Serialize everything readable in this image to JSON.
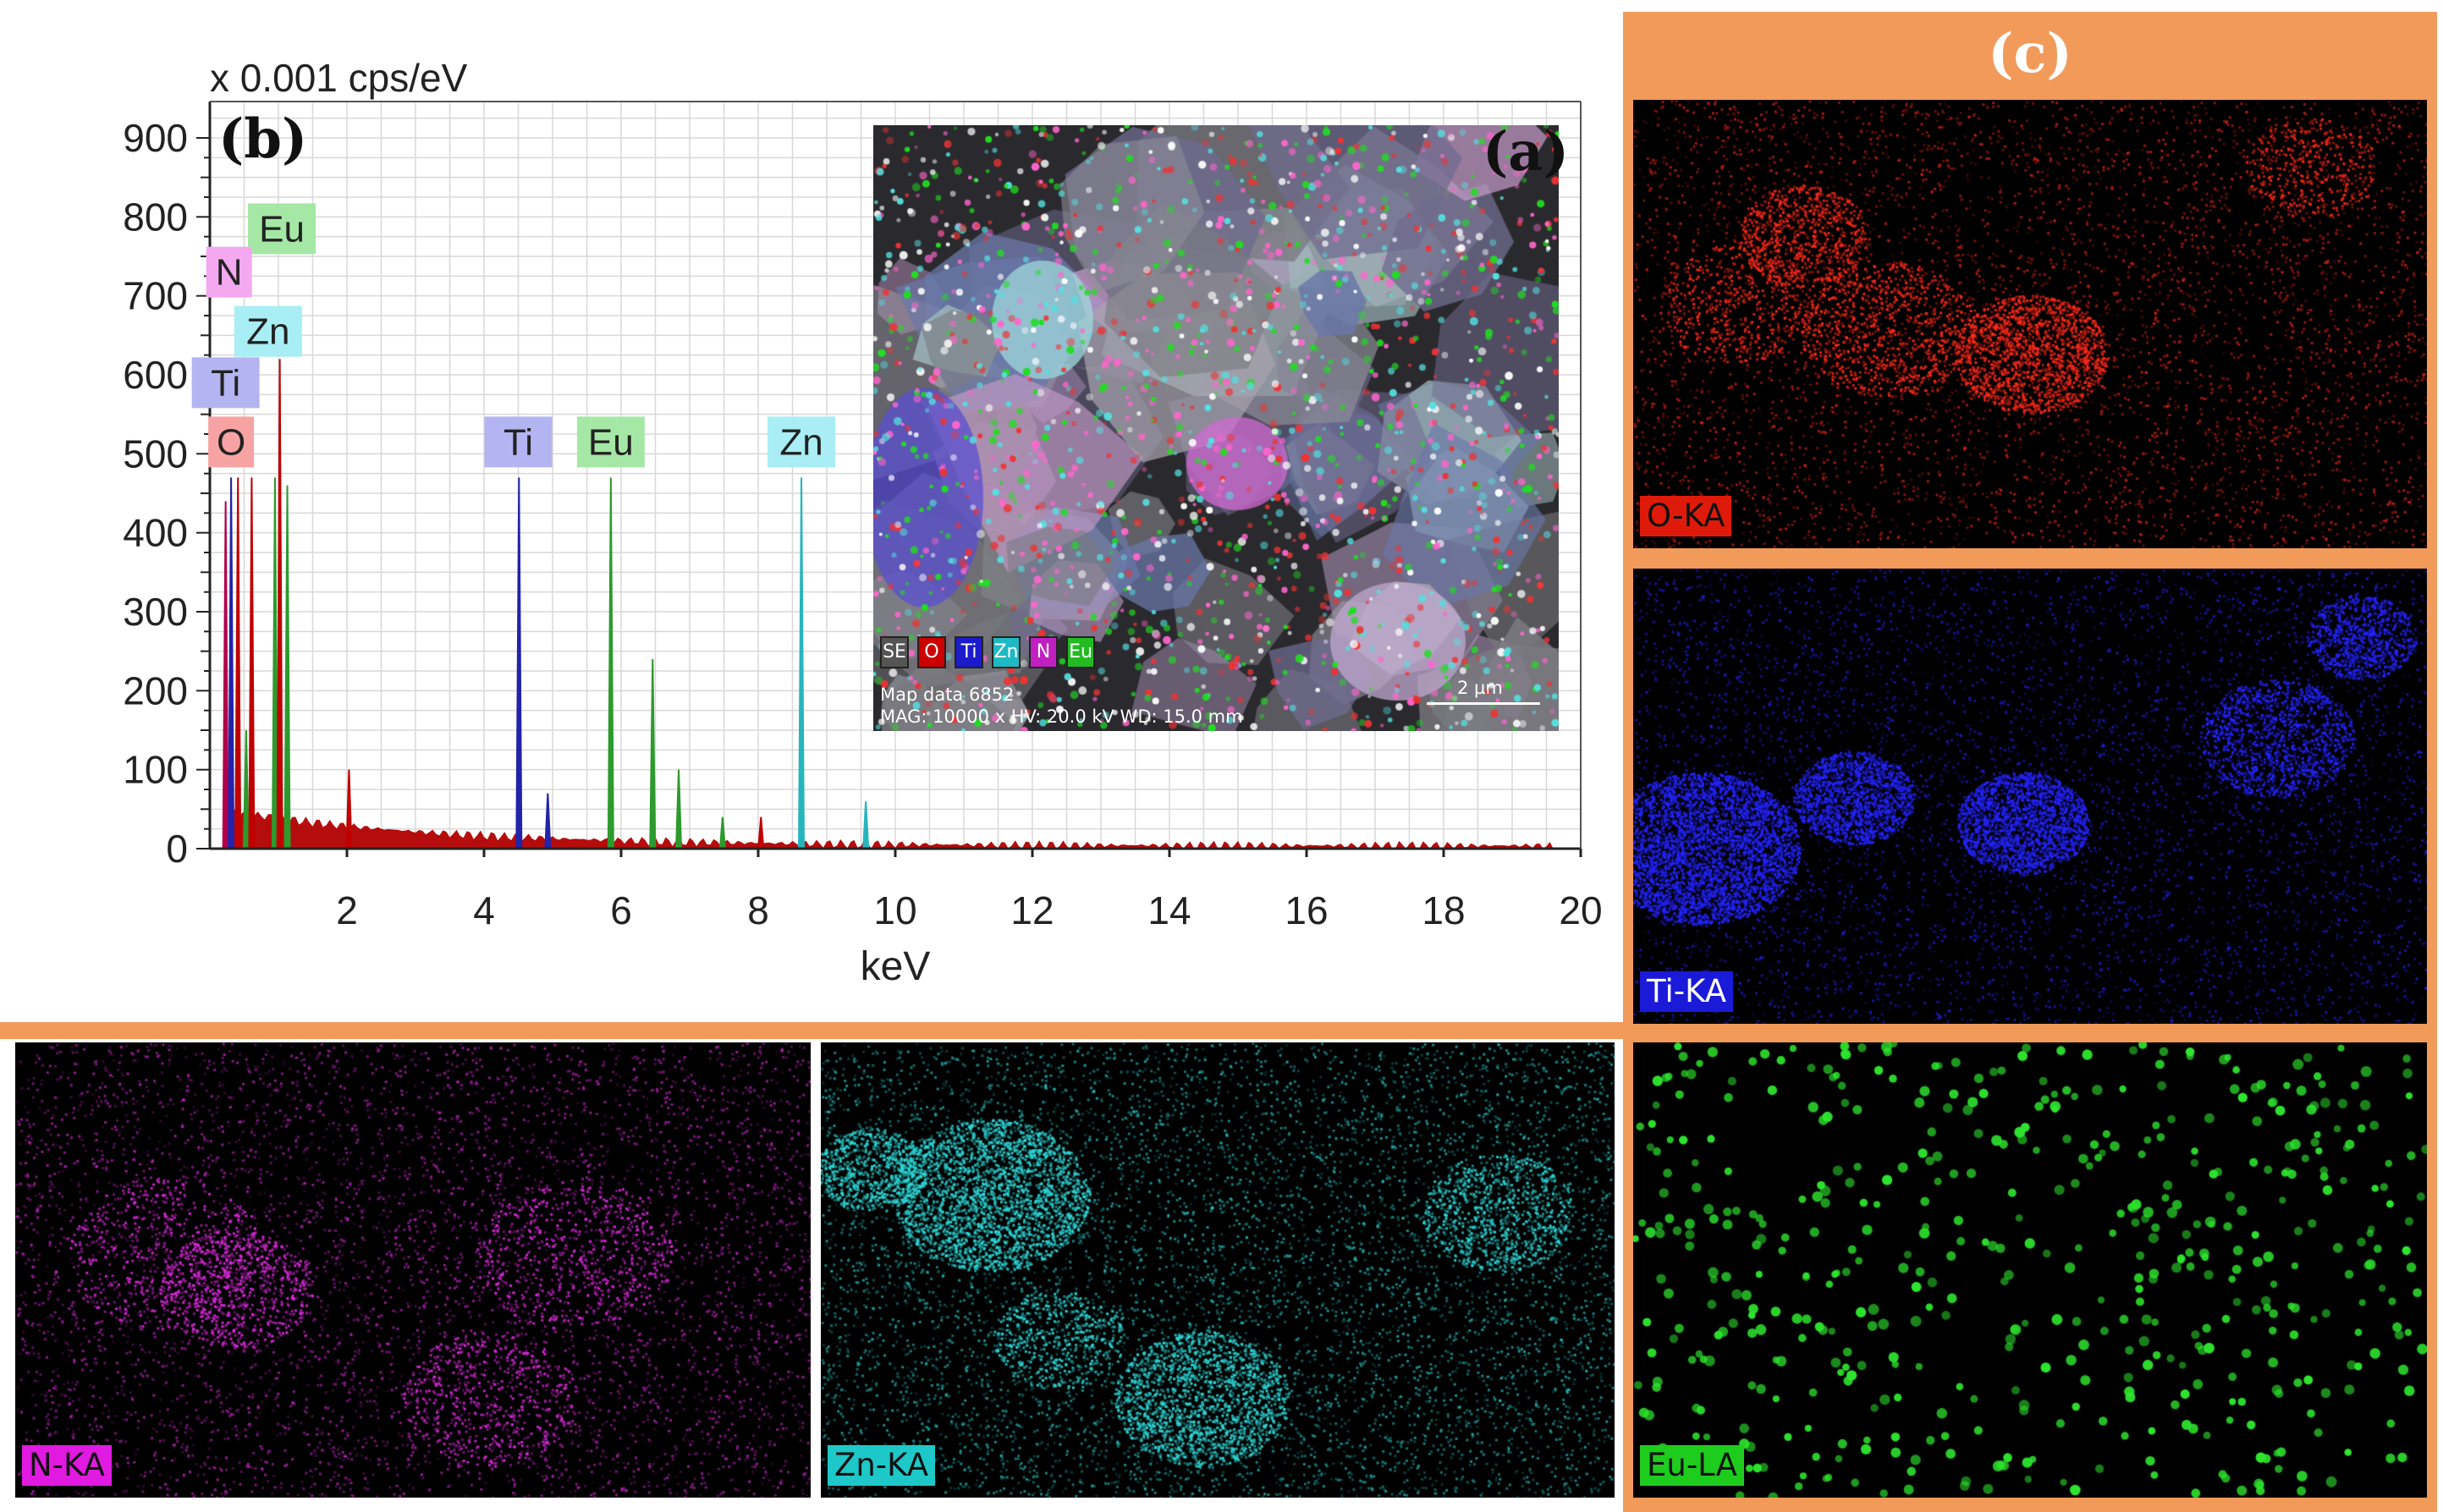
{
  "chart_data": {
    "type": "spectrum",
    "panel_label": "(b)",
    "unit_label": "x 0.001 cps/eV",
    "xlabel": "keV",
    "ylabel": "",
    "xlim": [
      0,
      20
    ],
    "ylim": [
      0,
      900
    ],
    "x_ticks": [
      "2",
      "4",
      "6",
      "8",
      "10",
      "12",
      "14",
      "16",
      "18",
      "20"
    ],
    "y_ticks": [
      "900",
      "800",
      "700",
      "600",
      "500",
      "400",
      "300",
      "200",
      "100",
      "0"
    ],
    "grid": true,
    "peaks": [
      {
        "element": "N",
        "x": 0.23,
        "y": 440,
        "color": "#b1004a"
      },
      {
        "element": "Ti",
        "x": 0.31,
        "y": 470,
        "color": "#2222aa"
      },
      {
        "element": "O",
        "x": 0.41,
        "y": 470,
        "color": "#c00000"
      },
      {
        "element": "Eu",
        "x": 0.53,
        "y": 150,
        "color": "#2c9a2c"
      },
      {
        "element": "N",
        "x": 0.61,
        "y": 470,
        "color": "#c00000"
      },
      {
        "element": "Zn",
        "x": 0.95,
        "y": 470,
        "color": "#2c9a2c"
      },
      {
        "element": "Zn",
        "x": 1.02,
        "y": 620,
        "color": "#c00000"
      },
      {
        "element": "Eu",
        "x": 1.13,
        "y": 460,
        "color": "#2c9a2c"
      },
      {
        "element": "",
        "x": 2.03,
        "y": 100,
        "color": "#c00000"
      },
      {
        "element": "Ti",
        "x": 4.51,
        "y": 470,
        "color": "#2222aa"
      },
      {
        "element": "Ti",
        "x": 4.93,
        "y": 70,
        "color": "#2222aa"
      },
      {
        "element": "Eu",
        "x": 5.85,
        "y": 470,
        "color": "#2c9a2c"
      },
      {
        "element": "Eu",
        "x": 6.46,
        "y": 240,
        "color": "#2c9a2c"
      },
      {
        "element": "Eu",
        "x": 6.84,
        "y": 100,
        "color": "#2c9a2c"
      },
      {
        "element": "Eu",
        "x": 7.48,
        "y": 40,
        "color": "#2c9a2c"
      },
      {
        "element": "Zn",
        "x": 8.04,
        "y": 40,
        "color": "#c00000"
      },
      {
        "element": "Zn",
        "x": 8.63,
        "y": 470,
        "color": "#27b5bd"
      },
      {
        "element": "Zn",
        "x": 9.57,
        "y": 60,
        "color": "#27b5bd"
      }
    ],
    "peak_labels": [
      {
        "text": "Eu",
        "x": 1.05,
        "y": 785,
        "color": "#a5e8a5"
      },
      {
        "text": "N",
        "x": 0.28,
        "y": 730,
        "color": "#f3a8f0"
      },
      {
        "text": "Zn",
        "x": 0.85,
        "y": 655,
        "color": "#a8eef4"
      },
      {
        "text": "Ti",
        "x": 0.23,
        "y": 590,
        "color": "#b4b4f2"
      },
      {
        "text": "O",
        "x": 0.31,
        "y": 515,
        "color": "#f7a3a3"
      },
      {
        "text": "Ti",
        "x": 4.5,
        "y": 515,
        "color": "#b4b4f2"
      },
      {
        "text": "Eu",
        "x": 5.85,
        "y": 515,
        "color": "#a5e8a5"
      },
      {
        "text": "Zn",
        "x": 8.63,
        "y": 515,
        "color": "#a8eef4"
      }
    ]
  },
  "sem": {
    "panel_label": "(a)",
    "legend": [
      "SE",
      "O",
      "Ti",
      "Zn",
      "N",
      "Eu"
    ],
    "legend_colors": [
      "#555555",
      "#cc0000",
      "#1b1bcc",
      "#1fb9c4",
      "#c020c0",
      "#22bb22"
    ],
    "info_line1": "Map data 6852",
    "info_line2": "MAG: 10000 x  HV: 20.0 kV  WD: 15.0 mm",
    "scale_bar": "2 µm"
  },
  "maps": {
    "panel_label": "(c)",
    "o": {
      "label": "O-KA",
      "color": "#ff2a1a"
    },
    "ti": {
      "label": "Ti-KA",
      "color": "#2424ff"
    },
    "eu": {
      "label": "Eu-LA",
      "color": "#2ee62e"
    },
    "n": {
      "label": "N-KA",
      "color": "#e02ae0"
    },
    "zn": {
      "label": "Zn-KA",
      "color": "#2fd8d8"
    }
  }
}
